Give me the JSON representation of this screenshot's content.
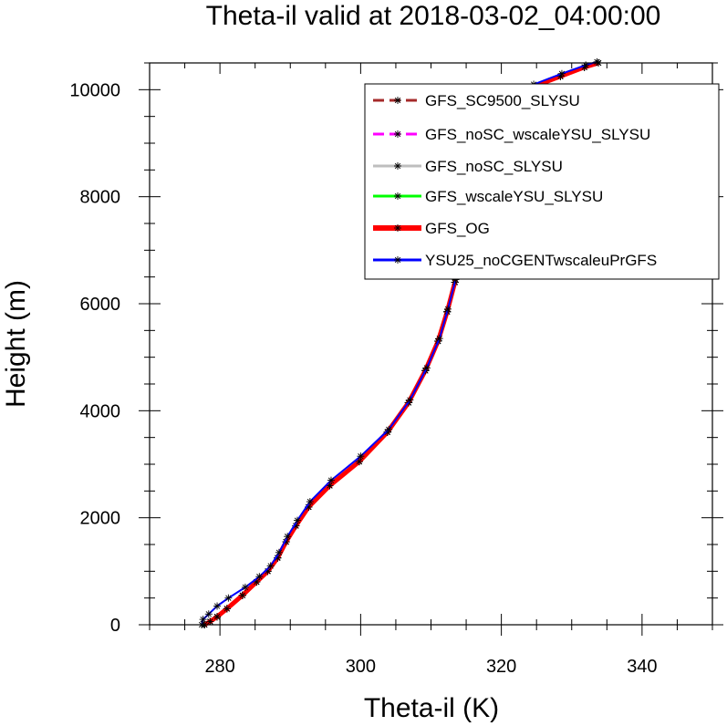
{
  "chart_data": {
    "type": "line",
    "title": "Theta-il valid at 2018-03-02_04:00:00",
    "xlabel": "Theta-il (K)",
    "ylabel": "Height (m)",
    "xlim": [
      270,
      350
    ],
    "ylim": [
      0,
      10500
    ],
    "xticks": [
      "280",
      "300",
      "320",
      "340"
    ],
    "yticks": [
      "0",
      "2000",
      "4000",
      "6000",
      "8000",
      "10000"
    ],
    "legend_position": "top-right",
    "grid": false,
    "series": [
      {
        "name": "GFS_SC9500_SLYSU",
        "color": "#a52a2a",
        "dash": "dashed",
        "width": 3,
        "x": [
          277.8,
          278.6,
          279.6,
          281.0,
          283.2,
          285.2,
          286.8,
          288.2,
          289.4,
          290.8,
          292.6,
          295.6,
          299.8,
          303.8,
          306.8,
          309.2,
          311.0,
          312.3,
          313.4,
          314.3,
          315.2,
          316.0,
          316.7,
          317.2,
          317.7,
          318.4,
          319.6,
          321.6,
          324.4,
          328.4,
          331.8,
          333.8
        ],
        "y": [
          0,
          60,
          150,
          300,
          550,
          800,
          1000,
          1250,
          1550,
          1850,
          2200,
          2600,
          3050,
          3600,
          4150,
          4750,
          5300,
          5850,
          6400,
          6950,
          7550,
          7850,
          8250,
          8650,
          9050,
          9350,
          9600,
          9850,
          10050,
          10250,
          10420,
          10500
        ]
      },
      {
        "name": "GFS_noSC_wscaleYSU_SLYSU",
        "color": "#ff00ff",
        "dash": "dashed",
        "width": 3,
        "x": [
          277.8,
          278.6,
          279.6,
          281.0,
          283.2,
          285.2,
          286.8,
          288.2,
          289.4,
          290.8,
          292.6,
          295.6,
          299.8,
          303.8,
          306.8,
          309.2,
          311.0,
          312.3,
          313.4,
          314.3,
          315.2,
          316.0,
          316.7,
          317.2,
          317.7,
          318.4,
          319.6,
          321.6,
          324.4,
          328.4,
          331.8,
          333.8
        ],
        "y": [
          0,
          60,
          150,
          300,
          550,
          800,
          1000,
          1250,
          1550,
          1850,
          2200,
          2600,
          3050,
          3600,
          4150,
          4750,
          5300,
          5850,
          6400,
          6950,
          7550,
          7850,
          8250,
          8650,
          9050,
          9350,
          9600,
          9850,
          10050,
          10250,
          10420,
          10500
        ]
      },
      {
        "name": "GFS_noSC_SLYSU",
        "color": "#bebebe",
        "dash": "solid",
        "width": 3,
        "x": [
          277.8,
          278.6,
          279.6,
          281.0,
          283.2,
          285.2,
          286.8,
          288.2,
          289.4,
          290.8,
          292.6,
          295.6,
          299.8,
          303.8,
          306.8,
          309.2,
          311.0,
          312.3,
          313.4,
          314.3,
          315.2,
          316.0,
          316.7,
          317.2,
          317.7,
          318.4,
          319.6,
          321.6,
          324.4,
          328.4,
          331.8,
          333.8
        ],
        "y": [
          0,
          60,
          150,
          300,
          550,
          800,
          1000,
          1250,
          1550,
          1850,
          2200,
          2600,
          3050,
          3600,
          4150,
          4750,
          5300,
          5850,
          6400,
          6950,
          7550,
          7850,
          8250,
          8650,
          9050,
          9350,
          9600,
          9850,
          10050,
          10250,
          10420,
          10500
        ]
      },
      {
        "name": "GFS_wscaleYSU_SLYSU",
        "color": "#00ff00",
        "dash": "solid",
        "width": 3,
        "x": [
          277.8,
          278.6,
          279.6,
          281.0,
          283.2,
          285.2,
          286.8,
          288.2,
          289.4,
          290.8,
          292.6,
          295.6,
          299.8,
          303.8,
          306.8,
          309.2,
          311.0,
          312.3,
          313.4,
          314.3,
          315.2,
          316.0,
          316.7,
          317.2,
          317.7,
          318.4,
          319.6,
          321.6,
          324.4,
          328.4,
          331.8,
          333.8
        ],
        "y": [
          0,
          60,
          150,
          300,
          550,
          800,
          1000,
          1250,
          1550,
          1850,
          2200,
          2600,
          3050,
          3600,
          4150,
          4750,
          5300,
          5850,
          6400,
          6950,
          7550,
          7850,
          8250,
          8650,
          9050,
          9350,
          9600,
          9850,
          10050,
          10250,
          10420,
          10500
        ]
      },
      {
        "name": "GFS_OG",
        "color": "#ff0000",
        "dash": "solid",
        "width": 5,
        "x": [
          277.8,
          278.6,
          279.6,
          281.0,
          283.2,
          285.2,
          286.8,
          288.2,
          289.4,
          290.8,
          292.6,
          295.6,
          299.8,
          303.8,
          306.8,
          309.2,
          311.0,
          312.3,
          313.4,
          314.3,
          315.2,
          316.0,
          316.7,
          317.2,
          317.7,
          318.4,
          319.6,
          321.6,
          324.4,
          328.4,
          331.8,
          333.8
        ],
        "y": [
          0,
          60,
          150,
          300,
          550,
          800,
          1000,
          1250,
          1550,
          1850,
          2200,
          2600,
          3050,
          3600,
          4150,
          4750,
          5300,
          5850,
          6400,
          6950,
          7550,
          7850,
          8250,
          8650,
          9050,
          9350,
          9600,
          9850,
          10050,
          10250,
          10420,
          10500
        ]
      },
      {
        "name": "YSU25_noCGENTwscaleuPrGFS",
        "color": "#0000ff",
        "dash": "solid",
        "width": 2,
        "x": [
          277.4,
          277.6,
          278.4,
          279.6,
          281.2,
          283.6,
          285.6,
          287.2,
          288.4,
          289.6,
          291.0,
          292.8,
          295.8,
          300.0,
          304.0,
          307.0,
          309.4,
          311.2,
          312.4,
          313.5,
          314.4,
          315.2,
          316.0,
          316.7,
          317.2,
          317.8,
          318.6,
          320.0,
          322.0,
          324.6,
          328.6,
          332.0,
          333.6
        ],
        "y": [
          0,
          100,
          200,
          350,
          500,
          700,
          900,
          1100,
          1350,
          1650,
          1950,
          2300,
          2700,
          3150,
          3650,
          4200,
          4800,
          5350,
          5900,
          6450,
          7000,
          7550,
          7900,
          8300,
          8700,
          9100,
          9400,
          9650,
          9900,
          10100,
          10300,
          10460,
          10520
        ]
      }
    ]
  }
}
